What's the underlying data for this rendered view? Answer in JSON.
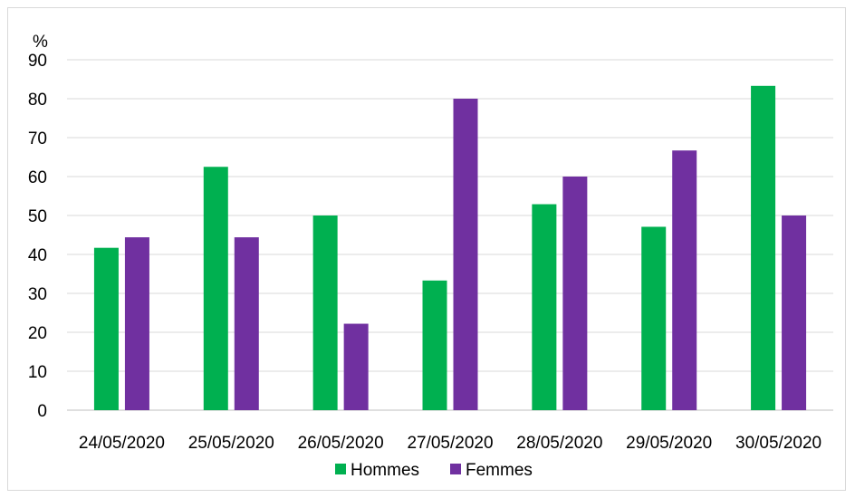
{
  "chart_data": {
    "type": "bar",
    "ylabel": "%",
    "ylim": [
      0,
      90
    ],
    "yticks": [
      0,
      10,
      20,
      30,
      40,
      50,
      60,
      70,
      80,
      90
    ],
    "grid": true,
    "legend_position": "bottom",
    "categories": [
      "24/05/2020",
      "25/05/2020",
      "26/05/2020",
      "27/05/2020",
      "28/05/2020",
      "29/05/2020",
      "30/05/2020"
    ],
    "series": [
      {
        "name": "Hommes",
        "color": "#00b050",
        "values": [
          41.7,
          62.5,
          50.0,
          33.3,
          52.9,
          47.1,
          83.3
        ]
      },
      {
        "name": "Femmes",
        "color": "#7030a0",
        "values": [
          44.4,
          44.4,
          22.2,
          80.0,
          60.0,
          66.7,
          50.0
        ]
      }
    ]
  }
}
